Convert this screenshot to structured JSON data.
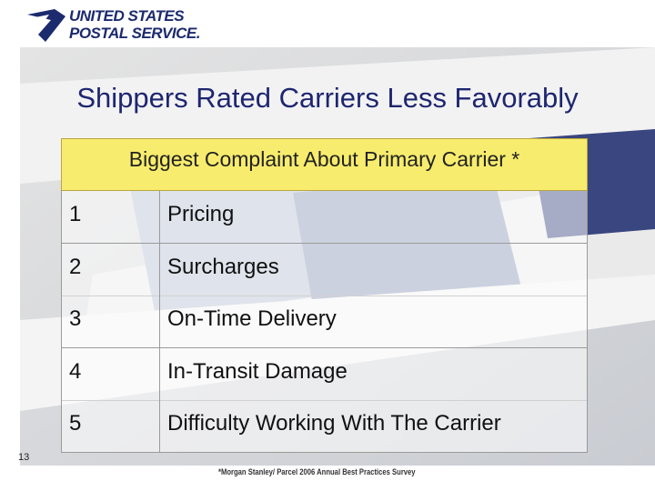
{
  "header": {
    "logo": {
      "line1": "UNITED STATES",
      "line2": "POSTAL SERVICE."
    }
  },
  "title": "Shippers Rated Carriers Less Favorably",
  "table": {
    "header": "Biggest Complaint About Primary Carrier *",
    "rows": [
      [
        "1",
        "Pricing"
      ],
      [
        "2",
        "Surcharges"
      ],
      [
        "3",
        "On-Time Delivery"
      ],
      [
        "4",
        "In-Transit Damage"
      ],
      [
        "5",
        "Difficulty Working With The Carrier"
      ]
    ]
  },
  "footer": {
    "page_number": "13",
    "source": "*Morgan Stanley/ Parcel 2006 Annual Best Practices Survey"
  }
}
